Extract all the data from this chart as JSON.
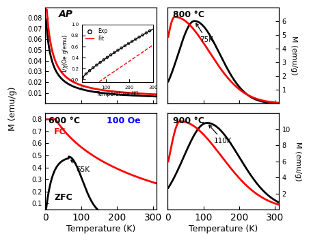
{
  "fig_width": 4.74,
  "fig_height": 3.52,
  "dpi": 100,
  "bg_color": "white",
  "ap_label": "AP",
  "panel_800_label": "800 °C",
  "panel_600_label": "600 °C",
  "panel_900_label": "900 °C",
  "oe_label": "100 Oe",
  "xlabel": "Temperature (K)",
  "ylabel_left": "M (emu/g)",
  "ylabel_right": "M (emu/g)",
  "ap_ylim": [
    0.0,
    0.09
  ],
  "ap_yticks": [
    0.01,
    0.02,
    0.03,
    0.04,
    0.05,
    0.06,
    0.07,
    0.08
  ],
  "ap_xlim": [
    0,
    310
  ],
  "p800_ylim": [
    0.0,
    7.0
  ],
  "p800_yticks": [
    1,
    2,
    3,
    4,
    5,
    6
  ],
  "p800_xlim": [
    0,
    310
  ],
  "p600_ylim": [
    0.05,
    0.85
  ],
  "p600_yticks": [
    0.1,
    0.2,
    0.3,
    0.4,
    0.5,
    0.6,
    0.7,
    0.8
  ],
  "p600_xlim": [
    0,
    310
  ],
  "p900_ylim": [
    0.0,
    12.0
  ],
  "p900_yticks": [
    2,
    4,
    6,
    8,
    10
  ],
  "p900_xlim": [
    0,
    310
  ],
  "red_color": "#ff0000",
  "black_color": "#000000",
  "blue_color": "#0000ff"
}
